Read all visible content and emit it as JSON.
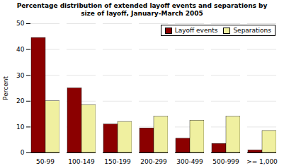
{
  "chart_data": {
    "type": "bar",
    "title": "Percentage distribution of extended layoff events and separations by\nsize of layoff, January-March 2005",
    "categories": [
      "50-99",
      "100-149",
      "150-199",
      "200-299",
      "300-499",
      "500-999",
      ">= 1,000"
    ],
    "series": [
      {
        "name": "Layoff events",
        "color": "#8B0000",
        "values": [
          44.5,
          25.0,
          11.0,
          9.5,
          5.5,
          3.5,
          1.0
        ]
      },
      {
        "name": "Separations",
        "color": "#F0F0A0",
        "values": [
          20.0,
          18.5,
          12.0,
          14.0,
          12.5,
          14.0,
          8.5
        ]
      }
    ],
    "ylabel": "Percent",
    "ylim": [
      0,
      50
    ],
    "yticks": [
      0,
      10,
      20,
      30,
      40,
      50
    ],
    "grid": true,
    "legend": "upper right"
  }
}
